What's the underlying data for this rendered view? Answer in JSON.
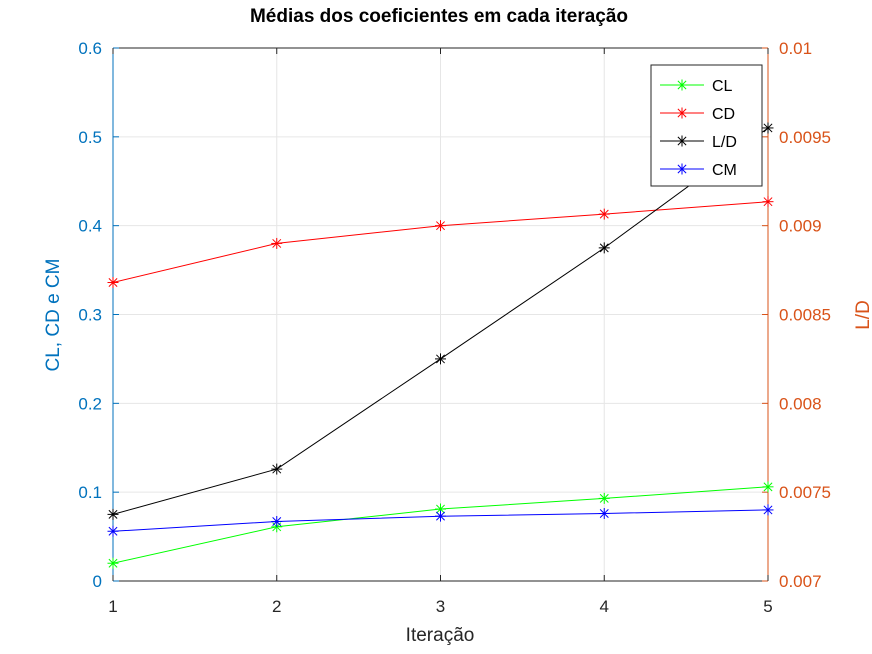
{
  "chart_data": {
    "type": "line",
    "title": "Médias dos coeficientes em cada iteração",
    "xlabel": "Iteração",
    "ylabel_left": "CL, CD e CM",
    "ylabel_right": "L/D",
    "x": [
      1,
      2,
      3,
      4,
      5
    ],
    "x_ticks": [
      "1",
      "2",
      "3",
      "4",
      "5"
    ],
    "xlim": [
      1,
      5
    ],
    "ylim_left": [
      0,
      0.6
    ],
    "ylim_right": [
      0.007,
      0.01
    ],
    "y_ticks_left": [
      "0",
      "0.1",
      "0.2",
      "0.3",
      "0.4",
      "0.5",
      "0.6"
    ],
    "y_ticks_right": [
      "0.007",
      "0.0075",
      "0.008",
      "0.0085",
      "0.009",
      "0.0095",
      "0.01"
    ],
    "grid": true,
    "legend_position": "top-right",
    "series": [
      {
        "name": "CL",
        "axis": "left",
        "color": "#00ff00",
        "marker": "*",
        "values": [
          0.02,
          0.061,
          0.081,
          0.093,
          0.106
        ]
      },
      {
        "name": "CD",
        "axis": "left",
        "color": "#ff0000",
        "marker": "*",
        "values": [
          0.336,
          0.38,
          0.4,
          0.413,
          0.427
        ]
      },
      {
        "name": "L/D",
        "axis": "right",
        "color": "#000000",
        "marker": "*",
        "values": [
          0.007375,
          0.00763,
          0.00825,
          0.008875,
          0.00955
        ]
      },
      {
        "name": "CM",
        "axis": "left",
        "color": "#0000ff",
        "marker": "*",
        "values": [
          0.056,
          0.067,
          0.073,
          0.076,
          0.08
        ]
      }
    ],
    "axis_colors": {
      "left": "#0072bd",
      "right": "#d95319",
      "x": "#262626"
    }
  }
}
